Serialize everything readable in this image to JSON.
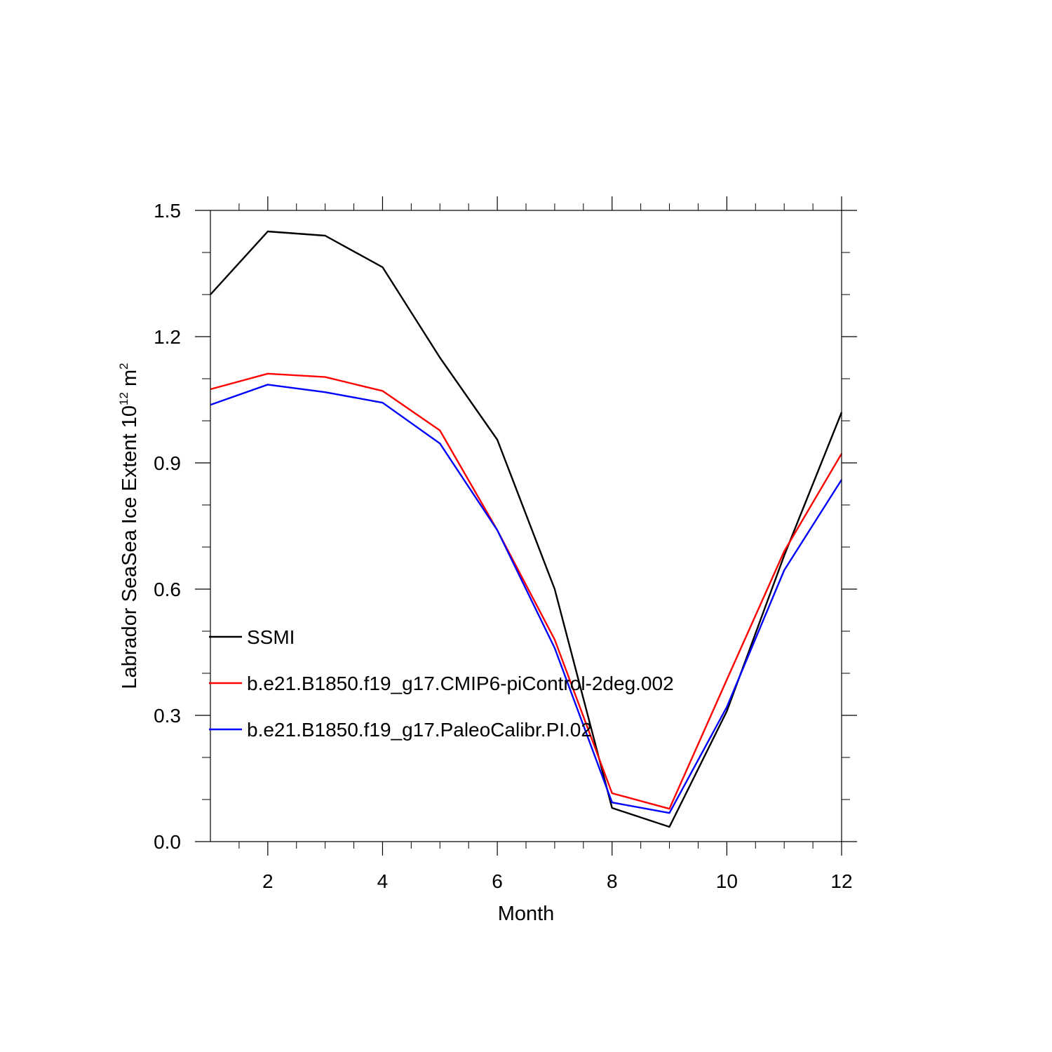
{
  "chart_data": {
    "type": "line",
    "xlabel": "Month",
    "ylabel": {
      "main": "Labrador SeaSea Ice Extent 10",
      "sup1": "12",
      "mid": " m",
      "sup2": "2"
    },
    "xlim": [
      1,
      12
    ],
    "ylim": [
      0.0,
      1.5
    ],
    "x_ticks": [
      2,
      4,
      6,
      8,
      10,
      12
    ],
    "y_ticks": [
      "0.0",
      "0.3",
      "0.6",
      "0.9",
      "1.2",
      "1.5"
    ],
    "grid": false,
    "legend_position": "lower-left",
    "x": [
      1,
      2,
      3,
      4,
      5,
      6,
      7,
      8,
      9,
      10,
      11,
      12
    ],
    "series": [
      {
        "name": "SSMI",
        "color": "#000000",
        "values": [
          1.3,
          1.45,
          1.44,
          1.365,
          1.15,
          0.955,
          0.6,
          0.08,
          0.035,
          0.31,
          0.68,
          1.02
        ]
      },
      {
        "name": "b.e21.B1850.f19_g17.CMIP6-piControl-2deg.002",
        "color": "#ff0000",
        "values": [
          1.075,
          1.112,
          1.104,
          1.071,
          0.977,
          0.74,
          0.48,
          0.115,
          0.078,
          0.385,
          0.69,
          0.922
        ]
      },
      {
        "name": "b.e21.B1850.f19_g17.PaleoCalibr.PI.02",
        "color": "#0000ff",
        "values": [
          1.038,
          1.086,
          1.068,
          1.043,
          0.946,
          0.74,
          0.46,
          0.093,
          0.068,
          0.32,
          0.645,
          0.86
        ]
      }
    ]
  }
}
